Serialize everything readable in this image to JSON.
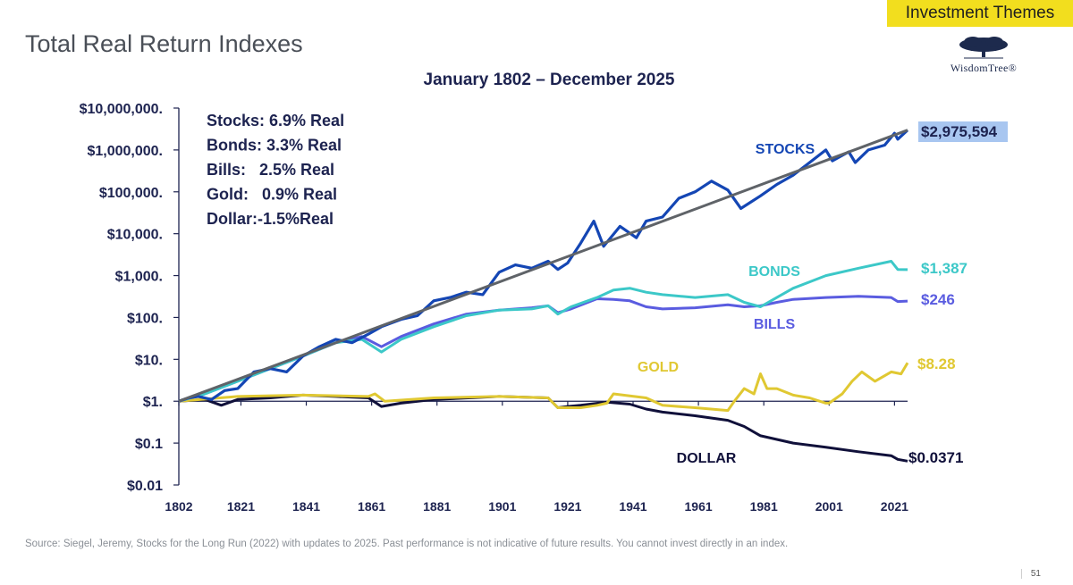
{
  "header": {
    "theme_tab": "Investment Themes",
    "title": "Total Real Return Indexes",
    "logo_text": "WisdomTree®"
  },
  "footer": {
    "source": "Source: Siegel, Jeremy, Stocks for the Long Run (2022) with updates to 2025. Past performance is not indicative of future results. You cannot invest directly in an index.",
    "page_number": "51"
  },
  "chart_data": {
    "type": "line",
    "subtitle": "January 1802 – December 2025",
    "y_scale": "log",
    "ylim": [
      0.01,
      10000000
    ],
    "xlim": [
      1802,
      2025
    ],
    "y_ticks": [
      {
        "value": 10000000,
        "label": "$10,000,000."
      },
      {
        "value": 1000000,
        "label": "$1,000,000."
      },
      {
        "value": 100000,
        "label": "$100,000."
      },
      {
        "value": 10000,
        "label": "$10,000."
      },
      {
        "value": 1000,
        "label": "$1,000."
      },
      {
        "value": 100,
        "label": "$100."
      },
      {
        "value": 10,
        "label": "$10."
      },
      {
        "value": 1,
        "label": "$1."
      },
      {
        "value": 0.1,
        "label": "$0.1"
      },
      {
        "value": 0.01,
        "label": "$0.01"
      }
    ],
    "x_ticks": [
      "1802",
      "1821",
      "1841",
      "1861",
      "1881",
      "1901",
      "1921",
      "1941",
      "1961",
      "1981",
      "2001",
      "2021"
    ],
    "summary": [
      "Stocks: 6.9% Real",
      "Bonds: 3.3% Real",
      "Bills:   2.5% Real",
      "Gold:   0.9% Real",
      "Dollar:-1.5%Real"
    ],
    "colors": {
      "stocks": "#1446b4",
      "trend": "#5f6368",
      "bonds": "#3cc8c8",
      "bills": "#5a5ce0",
      "gold": "#e0c832",
      "dollar": "#10103a",
      "axis": "#1d2350",
      "highlight": "#a8c6f0"
    },
    "trend_line": {
      "x": [
        1802,
        2025
      ],
      "y": [
        1,
        2975594
      ]
    },
    "series": [
      {
        "key": "stocks",
        "name": "STOCKS",
        "end_label": "$2,975,594",
        "end_highlight": true,
        "x": [
          1802,
          1805,
          1808,
          1812,
          1816,
          1820,
          1825,
          1830,
          1835,
          1840,
          1845,
          1850,
          1855,
          1860,
          1864,
          1870,
          1875,
          1880,
          1885,
          1890,
          1895,
          1900,
          1905,
          1910,
          1915,
          1918,
          1921,
          1925,
          1929,
          1932,
          1937,
          1942,
          1945,
          1950,
          1955,
          1960,
          1965,
          1970,
          1974,
          1980,
          1985,
          1990,
          1995,
          2000,
          2002,
          2007,
          2009,
          2013,
          2018,
          2021,
          2022,
          2025
        ],
        "y": [
          1,
          1.2,
          1.3,
          1.1,
          1.8,
          2,
          5,
          6,
          5,
          12,
          20,
          30,
          25,
          40,
          60,
          90,
          110,
          250,
          300,
          400,
          350,
          1200,
          1800,
          1500,
          2200,
          1400,
          2000,
          6000,
          20000,
          5000,
          15000,
          8000,
          20000,
          25000,
          70000,
          100000,
          180000,
          110000,
          40000,
          80000,
          150000,
          250000,
          500000,
          1000000,
          550000,
          900000,
          500000,
          1000000,
          1300000,
          2500000,
          1800000,
          2975594
        ]
      },
      {
        "key": "bonds",
        "name": "BONDS",
        "end_label": "$1,387",
        "end_highlight": false,
        "x": [
          1802,
          1810,
          1820,
          1830,
          1840,
          1850,
          1858,
          1864,
          1870,
          1880,
          1890,
          1900,
          1910,
          1915,
          1918,
          1922,
          1930,
          1935,
          1940,
          1945,
          1950,
          1960,
          1970,
          1975,
          1980,
          1985,
          1990,
          2000,
          2010,
          2020,
          2022,
          2025
        ],
        "y": [
          1,
          1.5,
          3,
          6,
          12,
          25,
          30,
          15,
          30,
          60,
          110,
          150,
          160,
          190,
          120,
          180,
          300,
          450,
          500,
          400,
          350,
          300,
          350,
          230,
          180,
          300,
          500,
          1000,
          1500,
          2200,
          1400,
          1387
        ]
      },
      {
        "key": "bills",
        "name": "BILLS",
        "end_label": "$246",
        "end_highlight": false,
        "x": [
          1802,
          1810,
          1820,
          1830,
          1840,
          1850,
          1858,
          1864,
          1870,
          1880,
          1890,
          1900,
          1910,
          1915,
          1918,
          1922,
          1930,
          1935,
          1940,
          1945,
          1950,
          1960,
          1970,
          1975,
          1980,
          1985,
          1990,
          2000,
          2010,
          2020,
          2022,
          2025
        ],
        "y": [
          1,
          1.5,
          3,
          6,
          12,
          25,
          35,
          20,
          35,
          70,
          120,
          150,
          170,
          190,
          130,
          160,
          280,
          270,
          250,
          180,
          160,
          170,
          200,
          180,
          190,
          230,
          270,
          300,
          320,
          300,
          240,
          246
        ]
      },
      {
        "key": "gold",
        "name": "GOLD",
        "end_label": "$8.28",
        "end_highlight": false,
        "x": [
          1802,
          1820,
          1840,
          1860,
          1862,
          1865,
          1880,
          1900,
          1915,
          1918,
          1921,
          1925,
          1930,
          1933,
          1935,
          1945,
          1950,
          1960,
          1970,
          1972,
          1975,
          1978,
          1980,
          1982,
          1985,
          1990,
          1995,
          2000,
          2001,
          2005,
          2008,
          2011,
          2015,
          2020,
          2023,
          2025
        ],
        "y": [
          1,
          1.3,
          1.4,
          1.3,
          1.5,
          1,
          1.2,
          1.3,
          1.2,
          0.7,
          0.7,
          0.7,
          0.8,
          0.9,
          1.5,
          1.2,
          0.8,
          0.7,
          0.6,
          1,
          2,
          1.5,
          4.5,
          2,
          2,
          1.4,
          1.2,
          0.9,
          0.9,
          1.5,
          3,
          5,
          3,
          5,
          4.5,
          8.28
        ]
      },
      {
        "key": "dollar",
        "name": "DOLLAR",
        "end_label": "$0.0371",
        "end_highlight": false,
        "x": [
          1802,
          1810,
          1815,
          1820,
          1830,
          1840,
          1850,
          1860,
          1864,
          1870,
          1880,
          1900,
          1915,
          1918,
          1921,
          1925,
          1933,
          1940,
          1945,
          1950,
          1960,
          1970,
          1975,
          1980,
          1990,
          2000,
          2010,
          2020,
          2022,
          2025
        ],
        "y": [
          1,
          1.1,
          0.8,
          1.1,
          1.2,
          1.4,
          1.3,
          1.2,
          0.75,
          0.9,
          1.1,
          1.3,
          1.2,
          0.7,
          0.75,
          0.8,
          0.95,
          0.85,
          0.65,
          0.55,
          0.45,
          0.35,
          0.25,
          0.15,
          0.1,
          0.08,
          0.062,
          0.05,
          0.041,
          0.0371
        ]
      }
    ]
  }
}
